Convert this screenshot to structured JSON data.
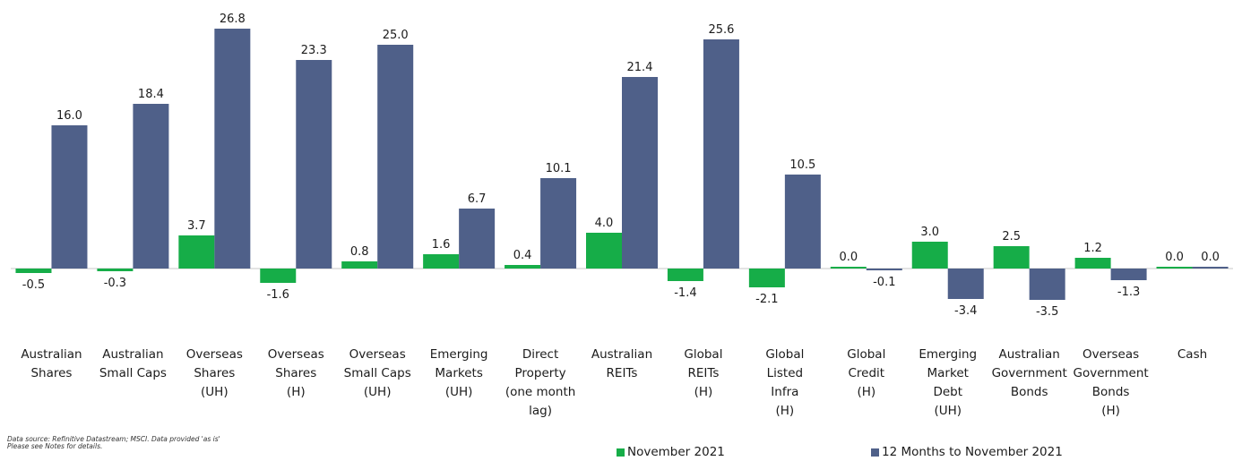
{
  "chart_data": {
    "type": "bar",
    "categories": [
      [
        "Australian",
        "Shares"
      ],
      [
        "Australian",
        "Small Caps"
      ],
      [
        "Overseas",
        "Shares",
        "(UH)"
      ],
      [
        "Overseas",
        "Shares",
        "(H)"
      ],
      [
        "Overseas",
        "Small Caps",
        "(UH)"
      ],
      [
        "Emerging",
        "Markets",
        "(UH)"
      ],
      [
        "Direct",
        "Property",
        "(one month",
        "lag)"
      ],
      [
        "Australian",
        "REITs"
      ],
      [
        "Global",
        "REITs",
        "(H)"
      ],
      [
        "Global",
        "Listed",
        "Infra",
        "(H)"
      ],
      [
        "Global",
        "Credit",
        "(H)"
      ],
      [
        "Emerging",
        "Market",
        "Debt",
        "(UH)"
      ],
      [
        "Australian",
        "Government",
        "Bonds"
      ],
      [
        "Overseas",
        "Government",
        "Bonds",
        "(H)"
      ],
      [
        "Cash"
      ]
    ],
    "series": [
      {
        "name": "November 2021",
        "color": "#16ad48",
        "values": [
          -0.5,
          -0.3,
          3.7,
          -1.6,
          0.8,
          1.6,
          0.4,
          4.0,
          -1.4,
          -2.1,
          0.0,
          3.0,
          2.5,
          1.2,
          0.0
        ]
      },
      {
        "name": "12 Months to November 2021",
        "color": "#4f6089",
        "values": [
          16.0,
          18.4,
          26.8,
          23.3,
          25.0,
          6.7,
          10.1,
          21.4,
          25.6,
          10.5,
          -0.1,
          -3.4,
          -3.5,
          -1.3,
          0.0
        ]
      }
    ],
    "ylim": [
      -5,
      30
    ],
    "grid": false,
    "legend_position": "bottom"
  },
  "footer": {
    "source_line": "Data source: Refinitive Datastream;  MSCI. Data provided 'as is'",
    "notes_line": "Please see Notes for details."
  }
}
